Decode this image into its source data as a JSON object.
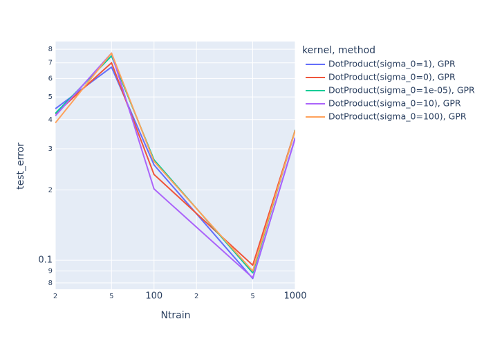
{
  "chart_data": {
    "type": "line",
    "x_label": "Ntrain",
    "y_label": "test_error",
    "legend_title": "kernel, method",
    "x": [
      20,
      50,
      100,
      500,
      1000
    ],
    "series": [
      {
        "name": "DotProduct(sigma_0=1), GPR",
        "color": "#636efa",
        "values": [
          0.445,
          0.671,
          0.256,
          0.0836,
          0.335
        ]
      },
      {
        "name": "DotProduct(sigma_0=0), GPR",
        "color": "#EF553B",
        "values": [
          0.423,
          0.7,
          0.233,
          0.0953,
          0.361
        ]
      },
      {
        "name": "DotProduct(sigma_0=1e-05), GPR",
        "color": "#00cc96",
        "values": [
          0.425,
          0.749,
          0.269,
          0.0884,
          0.361
        ]
      },
      {
        "name": "DotProduct(sigma_0=10), GPR",
        "color": "#ab63fa",
        "values": [
          0.415,
          0.77,
          0.202,
          0.0842,
          0.333
        ]
      },
      {
        "name": "DotProduct(sigma_0=100), GPR",
        "color": "#FFA15A",
        "values": [
          0.387,
          0.77,
          0.265,
          0.09,
          0.36
        ]
      }
    ],
    "xscale": "log",
    "yscale": "log",
    "xlim": [
      20,
      1000
    ],
    "xticks": [
      {
        "value": 20,
        "label": "2"
      },
      {
        "value": 50,
        "label": "5"
      },
      100,
      {
        "value": 200,
        "label": "2"
      },
      {
        "value": 500,
        "label": "5"
      },
      1000
    ],
    "ylim": [
      0.0752,
      0.863
    ],
    "yticks": [
      {
        "value": 0.08,
        "label": "8"
      },
      {
        "value": 0.09,
        "label": "9"
      },
      0.1,
      {
        "value": 0.2,
        "label": "2"
      },
      {
        "value": 0.3,
        "label": "3"
      },
      {
        "value": 0.4,
        "label": "4"
      },
      {
        "value": 0.5,
        "label": "5"
      },
      {
        "value": 0.6,
        "label": "6"
      },
      {
        "value": 0.7,
        "label": "7"
      },
      {
        "value": 0.8,
        "label": "8"
      }
    ],
    "grid": true
  }
}
